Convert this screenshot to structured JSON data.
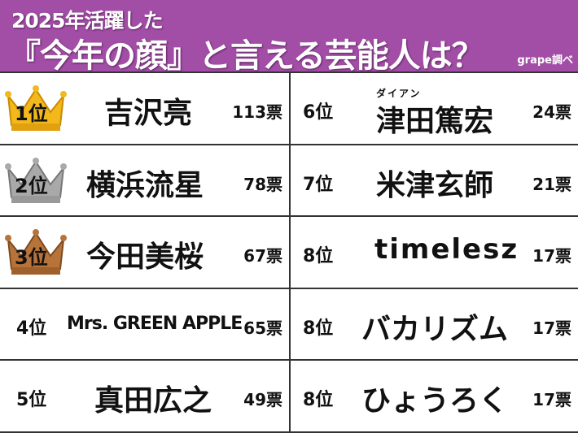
{
  "header": {
    "line1": "2025年活躍した",
    "line2": "『今年の顔』と言える芸能人は？",
    "source": "grape調べ",
    "background": "#a34ea6"
  },
  "left": [
    {
      "rank": "1位",
      "name": "吉沢亮",
      "votes": "113票",
      "crown": "gold"
    },
    {
      "rank": "2位",
      "name": "横浜流星",
      "votes": "78票",
      "crown": "silver"
    },
    {
      "rank": "3位",
      "name": "今田美桜",
      "votes": "67票",
      "crown": "bronze"
    },
    {
      "rank": "4位",
      "name": "Mrs. GREEN APPLE",
      "votes": "65票"
    },
    {
      "rank": "5位",
      "name": "真田広之",
      "votes": "49票"
    }
  ],
  "right": [
    {
      "rank": "6位",
      "name": "津田篤宏",
      "ruby": "ダイアン",
      "votes": "24票"
    },
    {
      "rank": "7位",
      "name": "米津玄師",
      "votes": "21票"
    },
    {
      "rank": "8位",
      "name": "timelesz",
      "votes": "17票"
    },
    {
      "rank": "8位",
      "name": "バカリズム",
      "votes": "17票"
    },
    {
      "rank": "8位",
      "name": "ひょうろく",
      "votes": "17票"
    }
  ],
  "crown_colors": {
    "gold": "#f2b81c",
    "silver": "#a9a9a9",
    "bronze": "#b8733a"
  }
}
